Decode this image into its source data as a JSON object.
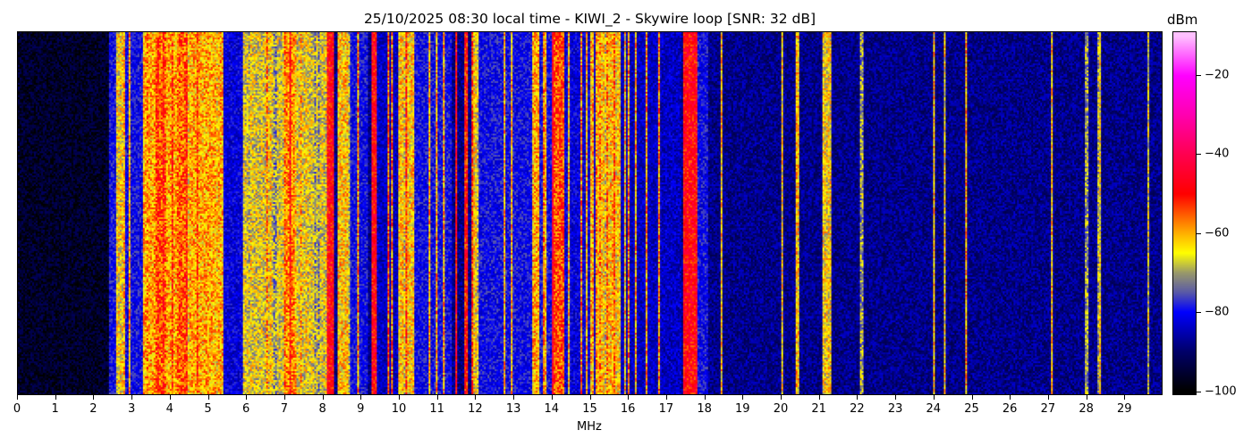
{
  "chart_data": {
    "type": "heatmap",
    "title": "25/10/2025 08:30 local time - KIWI_2 - Skywire loop [SNR: 32 dB]",
    "xlabel": "MHz",
    "xlim": [
      0,
      30
    ],
    "x_ticks": [
      "0",
      "1",
      "2",
      "3",
      "4",
      "5",
      "6",
      "7",
      "8",
      "9",
      "10",
      "11",
      "12",
      "13",
      "14",
      "15",
      "16",
      "17",
      "18",
      "19",
      "20",
      "21",
      "22",
      "23",
      "24",
      "25",
      "26",
      "27",
      "28",
      "29"
    ],
    "colorbar": {
      "label": "dBm",
      "range": [
        -101,
        -9
      ],
      "ticks": [
        "-20",
        "-40",
        "-60",
        "-80",
        "-100"
      ],
      "colormap": [
        [
          -100,
          "#000000"
        ],
        [
          -90,
          "#00006a"
        ],
        [
          -80,
          "#0000ff"
        ],
        [
          -75,
          "#5a5aa8"
        ],
        [
          -70,
          "#9a9a6a"
        ],
        [
          -65,
          "#ffff00"
        ],
        [
          -60,
          "#ffb000"
        ],
        [
          -50,
          "#ff0000"
        ],
        [
          -40,
          "#ff0050"
        ],
        [
          -30,
          "#ff00b0"
        ],
        [
          -20,
          "#ff00ff"
        ],
        [
          -10,
          "#ffc0ff"
        ]
      ]
    },
    "baseline_dBm": -88,
    "frequency_profile_dBm": [
      [
        0.0,
        2.4,
        -96
      ],
      [
        2.4,
        3.3,
        -80
      ],
      [
        2.6,
        2.75,
        -64
      ],
      [
        3.3,
        5.4,
        -60
      ],
      [
        3.6,
        3.9,
        -55
      ],
      [
        4.2,
        4.4,
        -55
      ],
      [
        5.4,
        5.9,
        -82
      ],
      [
        5.9,
        8.1,
        -66
      ],
      [
        7.0,
        7.3,
        -58
      ],
      [
        8.1,
        8.3,
        -48
      ],
      [
        8.4,
        8.7,
        -62
      ],
      [
        8.7,
        9.2,
        -80
      ],
      [
        9.3,
        9.4,
        -48
      ],
      [
        9.4,
        10.0,
        -84
      ],
      [
        10.0,
        10.4,
        -62
      ],
      [
        10.4,
        11.4,
        -80
      ],
      [
        11.5,
        11.55,
        -48
      ],
      [
        11.7,
        11.8,
        -50
      ],
      [
        11.9,
        12.1,
        -64
      ],
      [
        12.1,
        13.5,
        -80
      ],
      [
        13.5,
        13.7,
        -60
      ],
      [
        13.7,
        14.0,
        -80
      ],
      [
        14.0,
        14.35,
        -54
      ],
      [
        14.35,
        15.2,
        -82
      ],
      [
        15.2,
        15.8,
        -62
      ],
      [
        15.8,
        17.4,
        -84
      ],
      [
        17.45,
        17.8,
        -48
      ],
      [
        17.8,
        18.1,
        -80
      ],
      [
        21.1,
        21.35,
        -64
      ],
      [
        22.1,
        22.15,
        -70
      ],
      [
        24.0,
        24.05,
        -62
      ],
      [
        27.1,
        27.15,
        -62
      ],
      [
        28.0,
        28.1,
        -70
      ],
      [
        28.3,
        28.4,
        -64
      ]
    ]
  }
}
